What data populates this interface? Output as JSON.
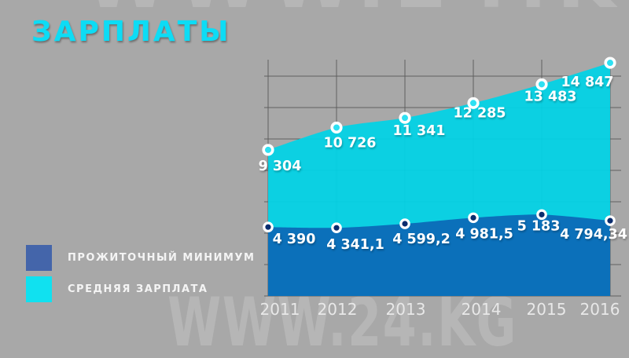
{
  "title": "ЗАРПЛАТЫ",
  "watermark": "WWW.24.KG",
  "legend": [
    {
      "label": "ПРОЖИТОЧНЫЙ МИНИМУМ",
      "color": "#4465aa"
    },
    {
      "label": "СРЕДНЯЯ ЗАРПЛАТА",
      "color": "#10e1f0"
    }
  ],
  "chart_data": {
    "type": "area",
    "title": "ЗАРПЛАТЫ",
    "categories": [
      "2011",
      "2012",
      "2013",
      "2014",
      "2015",
      "2016"
    ],
    "series": [
      {
        "name": "СРЕДНЯЯ ЗАРПЛАТА",
        "values": [
          9304,
          10726,
          11341,
          12285,
          13483,
          14847
        ],
        "labels": [
          "9 304",
          "10 726",
          "11 341",
          "12 285",
          "13 483",
          "14 847"
        ],
        "area_color": "#00d3e6",
        "marker_fill": "#2ee0f2",
        "marker_ring": "#ffffff"
      },
      {
        "name": "ПРОЖИТОЧНЫЙ МИНИМУМ",
        "values": [
          4390,
          4341.1,
          4599.2,
          4981.5,
          5183,
          4794.34
        ],
        "labels": [
          "4 390",
          "4 341,1",
          "4 599,2",
          "4 981,5",
          "5 183",
          "4 794,34"
        ],
        "area_color": "#0b6cb8",
        "marker_fill": "#0a2d6e",
        "marker_ring": "#ffffff"
      }
    ],
    "ylim": [
      0,
      14000
    ],
    "grid": true,
    "grid_step": 2000,
    "legend_position": "bottom-left",
    "background_color": "#a8a8a8",
    "gridline_color": "#5f5f5f"
  }
}
